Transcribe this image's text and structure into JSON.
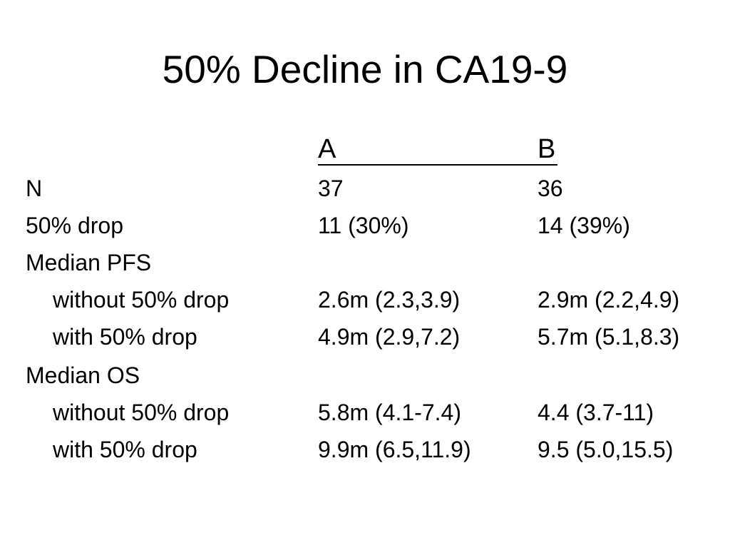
{
  "title": "50% Decline in CA19-9",
  "columns": [
    "A",
    "B"
  ],
  "rows": [
    {
      "label": "N",
      "a": "37",
      "b": "36"
    },
    {
      "label": "50% drop",
      "a": "11 (30%)",
      "b": "14 (39%)"
    },
    {
      "label": "Median PFS",
      "a": "",
      "b": ""
    },
    {
      "label": "without 50% drop",
      "a": "2.6m (2.3,3.9)",
      "b": "2.9m (2.2,4.9)"
    },
    {
      "label": "with 50% drop",
      "a": "4.9m (2.9,7.2)",
      "b": "5.7m (5.1,8.3)"
    },
    {
      "label": "Median OS",
      "a": "",
      "b": ""
    },
    {
      "label": "without 50% drop",
      "a": "5.8m (4.1-7.4)",
      "b": "4.4 (3.7-11)"
    },
    {
      "label": "with 50% drop",
      "a": "9.9m (6.5,11.9)",
      "b": "9.5 (5.0,15.5)"
    }
  ]
}
